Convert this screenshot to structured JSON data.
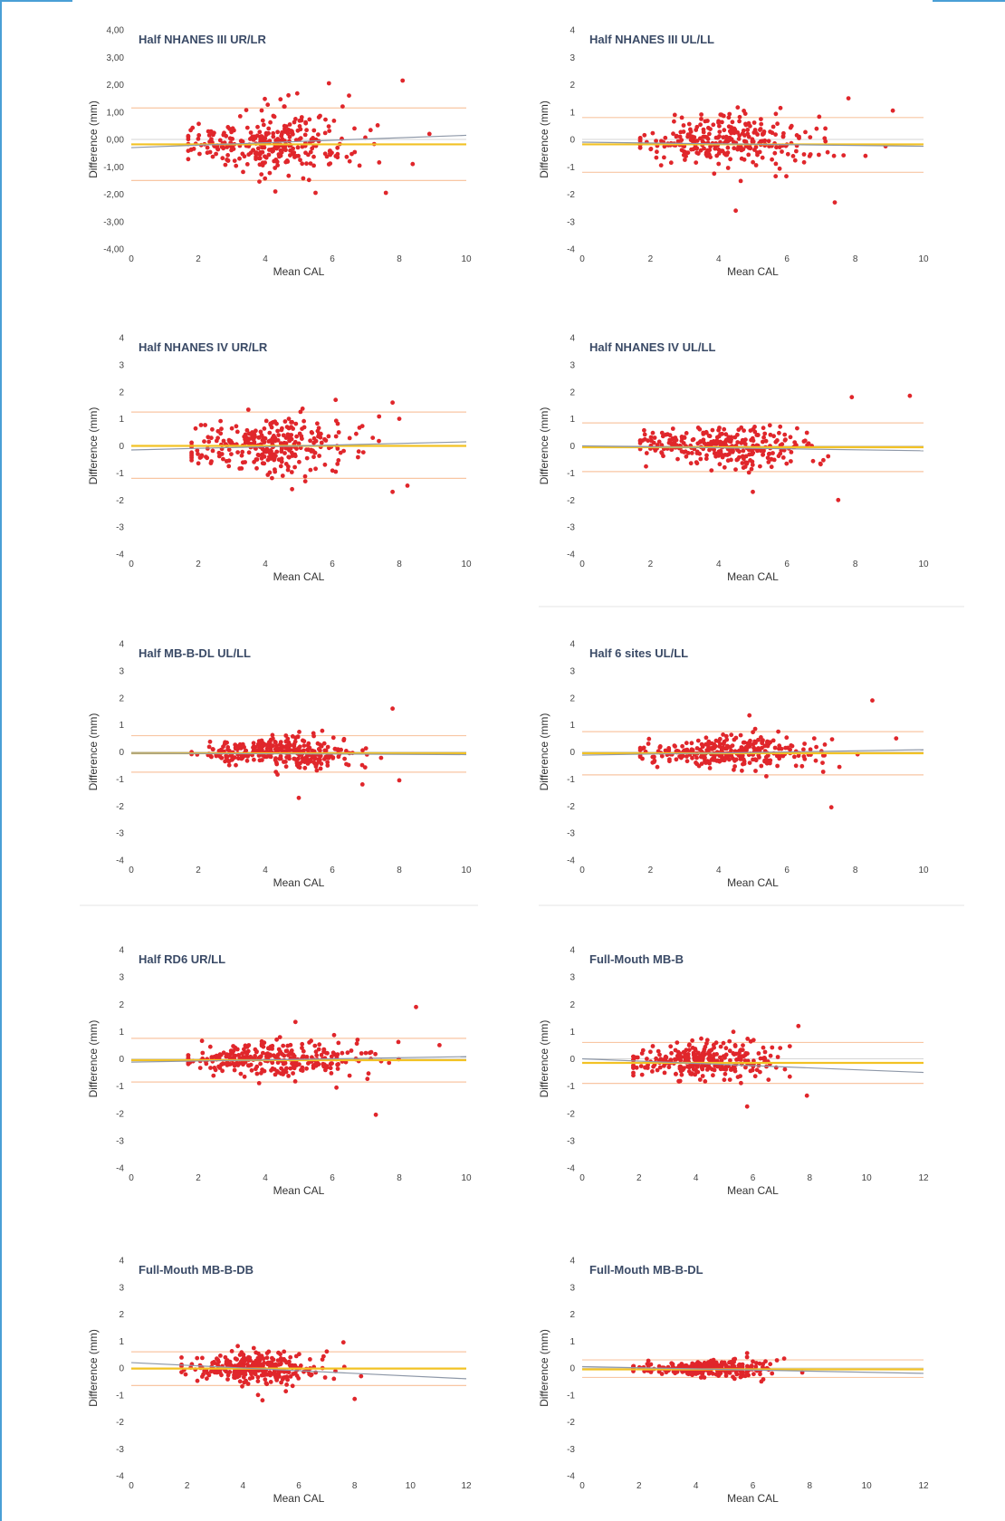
{
  "colors": {
    "frame": "#4a9fd6",
    "points": "#e0262b",
    "mean_line": "#f2c224",
    "limits_line": "#f8c6a3",
    "regression_line": "#8e98a8",
    "zero_line": "#d6d6d6",
    "separator": "#e6e6e6"
  },
  "chart_data": [
    {
      "type": "scatter",
      "title": "Half NHANES III UR/LR",
      "xlabel": "Mean CAL",
      "ylabel": "Difference (mm)",
      "xlim": [
        0,
        10
      ],
      "ylim": [
        -4,
        4
      ],
      "x_ticks": [
        "0",
        "2",
        "4",
        "6",
        "8",
        "10"
      ],
      "y_ticks": [
        "-4,00",
        "-3,00",
        "-2,00",
        "-1,00",
        "0,00",
        "1,00",
        "2,00",
        "3,00",
        "4,00"
      ],
      "mean_diff": -0.18,
      "upper_loa": 1.15,
      "lower_loa": -1.5,
      "regression": [
        [
          0,
          -0.3
        ],
        [
          10,
          0.15
        ]
      ],
      "point_cloud": {
        "n": 300,
        "x_center": 3.8,
        "x_spread": 1.4,
        "x_min": 1.7,
        "x_max": 9,
        "y_sd": 0.55,
        "seed": 11
      },
      "outliers": [
        [
          5.9,
          2.05
        ],
        [
          8.1,
          2.15
        ],
        [
          6.5,
          1.6
        ],
        [
          4.3,
          -1.9
        ],
        [
          5.5,
          -1.95
        ],
        [
          7.6,
          -1.95
        ],
        [
          8.9,
          0.2
        ],
        [
          8.4,
          -0.9
        ]
      ],
      "grid": false
    },
    {
      "type": "scatter",
      "title": "Half NHANES III UL/LL",
      "xlabel": "Mean CAL",
      "ylabel": "Difference (mm)",
      "xlim": [
        0,
        10
      ],
      "ylim": [
        -4,
        4
      ],
      "x_ticks": [
        "0",
        "2",
        "4",
        "6",
        "8",
        "10"
      ],
      "y_ticks": [
        "-4",
        "-3",
        "-2",
        "-1",
        "0",
        "1",
        "2",
        "3",
        "4"
      ],
      "mean_diff": -0.18,
      "upper_loa": 0.8,
      "lower_loa": -1.2,
      "regression": [
        [
          0,
          -0.1
        ],
        [
          10,
          -0.25
        ]
      ],
      "point_cloud": {
        "n": 300,
        "x_center": 3.8,
        "x_spread": 1.4,
        "x_min": 1.7,
        "x_max": 9,
        "y_sd": 0.45,
        "seed": 23
      },
      "outliers": [
        [
          4.5,
          -2.6
        ],
        [
          7.4,
          -2.3
        ],
        [
          7.8,
          1.5
        ],
        [
          9.1,
          1.05
        ],
        [
          8.3,
          -0.6
        ]
      ],
      "grid": false
    },
    {
      "type": "scatter",
      "title": "Half NHANES IV UR/LR",
      "xlabel": "Mean CAL",
      "ylabel": "Difference (mm)",
      "xlim": [
        0,
        10
      ],
      "ylim": [
        -4,
        4
      ],
      "x_ticks": [
        "0",
        "2",
        "4",
        "6",
        "8",
        "10"
      ],
      "y_ticks": [
        "-4",
        "-3",
        "-2",
        "-1",
        "0",
        "1",
        "2",
        "3",
        "4"
      ],
      "mean_diff": 0.0,
      "upper_loa": 1.25,
      "lower_loa": -1.2,
      "regression": [
        [
          0,
          -0.15
        ],
        [
          10,
          0.15
        ]
      ],
      "point_cloud": {
        "n": 300,
        "x_center": 3.9,
        "x_spread": 1.4,
        "x_min": 1.8,
        "x_max": 9,
        "y_sd": 0.5,
        "seed": 37
      },
      "outliers": [
        [
          7.8,
          -1.7
        ],
        [
          7.8,
          1.6
        ],
        [
          6.1,
          1.7
        ],
        [
          8.0,
          1.0
        ],
        [
          4.8,
          -1.6
        ]
      ],
      "grid": false
    },
    {
      "type": "scatter",
      "title": "Half NHANES IV UL/LL",
      "xlabel": "Mean CAL",
      "ylabel": "Difference (mm)",
      "xlim": [
        0,
        10
      ],
      "ylim": [
        -4,
        4
      ],
      "x_ticks": [
        "0",
        "2",
        "4",
        "6",
        "8",
        "10"
      ],
      "y_ticks": [
        "-4",
        "-3",
        "-2",
        "-1",
        "0",
        "1",
        "2",
        "3",
        "4"
      ],
      "mean_diff": -0.05,
      "upper_loa": 0.85,
      "lower_loa": -0.95,
      "regression": [
        [
          0,
          0.0
        ],
        [
          10,
          -0.18
        ]
      ],
      "point_cloud": {
        "n": 300,
        "x_center": 3.8,
        "x_spread": 1.4,
        "x_min": 1.7,
        "x_max": 9,
        "y_sd": 0.4,
        "seed": 41
      },
      "outliers": [
        [
          9.6,
          1.85
        ],
        [
          7.9,
          1.8
        ],
        [
          7.5,
          -2.0
        ],
        [
          5.0,
          -1.7
        ]
      ],
      "grid": false
    },
    {
      "type": "scatter",
      "title": "Half MB-B-DL UL/LL",
      "xlabel": "Mean CAL",
      "ylabel": "Difference (mm)",
      "xlim": [
        0,
        10
      ],
      "ylim": [
        -4,
        4
      ],
      "x_ticks": [
        "0",
        "2",
        "4",
        "6",
        "8",
        "10"
      ],
      "y_ticks": [
        "-4",
        "-3",
        "-2",
        "-1",
        "0",
        "1",
        "2",
        "3",
        "4"
      ],
      "mean_diff": -0.05,
      "upper_loa": 0.6,
      "lower_loa": -0.75,
      "regression": [
        [
          0,
          -0.05
        ],
        [
          10,
          -0.1
        ]
      ],
      "point_cloud": {
        "n": 300,
        "x_center": 3.9,
        "x_spread": 1.4,
        "x_min": 1.8,
        "x_max": 9,
        "y_sd": 0.3,
        "seed": 53
      },
      "outliers": [
        [
          7.8,
          1.6
        ],
        [
          5.0,
          -1.7
        ],
        [
          6.9,
          -1.2
        ],
        [
          8.0,
          -1.05
        ]
      ],
      "grid": false
    },
    {
      "type": "scatter",
      "title": "Half 6 sites UL/LL",
      "xlabel": "Mean CAL",
      "ylabel": "Difference (mm)",
      "xlim": [
        0,
        10
      ],
      "ylim": [
        -4,
        4
      ],
      "x_ticks": [
        "0",
        "2",
        "4",
        "6",
        "8",
        "10"
      ],
      "y_ticks": [
        "-4",
        "-3",
        "-2",
        "-1",
        "0",
        "1",
        "2",
        "3",
        "4"
      ],
      "mean_diff": -0.05,
      "upper_loa": 0.75,
      "lower_loa": -0.85,
      "regression": [
        [
          0,
          -0.12
        ],
        [
          10,
          0.08
        ]
      ],
      "point_cloud": {
        "n": 300,
        "x_center": 3.9,
        "x_spread": 1.4,
        "x_min": 1.7,
        "x_max": 9.2,
        "y_sd": 0.3,
        "seed": 61
      },
      "outliers": [
        [
          8.5,
          1.9
        ],
        [
          7.3,
          -2.05
        ],
        [
          4.9,
          1.35
        ],
        [
          9.2,
          0.5
        ]
      ],
      "grid": false
    },
    {
      "type": "scatter",
      "title": "Half RD6 UR/LL",
      "xlabel": "Mean CAL",
      "ylabel": "Difference (mm)",
      "xlim": [
        0,
        10
      ],
      "ylim": [
        -4,
        4
      ],
      "x_ticks": [
        "0",
        "2",
        "4",
        "6",
        "8",
        "10"
      ],
      "y_ticks": [
        "-4",
        "-3",
        "-2",
        "-1",
        "0",
        "1",
        "2",
        "3",
        "4"
      ],
      "mean_diff": -0.05,
      "upper_loa": 0.75,
      "lower_loa": -0.85,
      "regression": [
        [
          0,
          -0.12
        ],
        [
          10,
          0.08
        ]
      ],
      "point_cloud": {
        "n": 300,
        "x_center": 3.9,
        "x_spread": 1.4,
        "x_min": 1.7,
        "x_max": 9.2,
        "y_sd": 0.3,
        "seed": 67
      },
      "outliers": [
        [
          8.5,
          1.9
        ],
        [
          7.3,
          -2.05
        ],
        [
          4.9,
          1.35
        ],
        [
          9.2,
          0.5
        ]
      ],
      "grid": false
    },
    {
      "type": "scatter",
      "title": "Full-Mouth MB-B",
      "xlabel": "Mean CAL",
      "ylabel": "Difference (mm)",
      "xlim": [
        0,
        12
      ],
      "ylim": [
        -4,
        4
      ],
      "x_ticks": [
        "0",
        "2",
        "4",
        "6",
        "8",
        "10",
        "12"
      ],
      "y_ticks": [
        "-4",
        "-3",
        "-2",
        "-1",
        "0",
        "1",
        "2",
        "3",
        "4"
      ],
      "mean_diff": -0.15,
      "upper_loa": 0.6,
      "lower_loa": -0.9,
      "regression": [
        [
          0,
          0.0
        ],
        [
          12,
          -0.5
        ]
      ],
      "point_cloud": {
        "n": 300,
        "x_center": 3.9,
        "x_spread": 1.3,
        "x_min": 1.8,
        "x_max": 8.8,
        "y_sd": 0.35,
        "seed": 71
      },
      "outliers": [
        [
          7.6,
          1.2
        ],
        [
          5.8,
          -1.75
        ],
        [
          7.9,
          -1.35
        ]
      ],
      "grid": false
    },
    {
      "type": "scatter",
      "title": "Full-Mouth MB-B-DB",
      "xlabel": "Mean CAL",
      "ylabel": "Difference (mm)",
      "xlim": [
        0,
        12
      ],
      "ylim": [
        -4,
        4
      ],
      "x_ticks": [
        "0",
        "2",
        "4",
        "6",
        "8",
        "10",
        "12"
      ],
      "y_ticks": [
        "-4",
        "-3",
        "-2",
        "-1",
        "0",
        "1",
        "2",
        "3",
        "4"
      ],
      "mean_diff": -0.02,
      "upper_loa": 0.6,
      "lower_loa": -0.65,
      "regression": [
        [
          0,
          0.2
        ],
        [
          12,
          -0.4
        ]
      ],
      "point_cloud": {
        "n": 300,
        "x_center": 3.9,
        "x_spread": 1.3,
        "x_min": 1.8,
        "x_max": 8.8,
        "y_sd": 0.28,
        "seed": 83
      },
      "outliers": [
        [
          7.6,
          0.95
        ],
        [
          8.0,
          -1.15
        ],
        [
          4.7,
          -1.2
        ]
      ],
      "grid": false
    },
    {
      "type": "scatter",
      "title": "Full-Mouth MB-B-DL",
      "xlabel": "Mean CAL",
      "ylabel": "Difference (mm)",
      "xlim": [
        0,
        12
      ],
      "ylim": [
        -4,
        4
      ],
      "x_ticks": [
        "0",
        "2",
        "4",
        "6",
        "8",
        "10",
        "12"
      ],
      "y_ticks": [
        "-4",
        "-3",
        "-2",
        "-1",
        "0",
        "1",
        "2",
        "3",
        "4"
      ],
      "mean_diff": -0.05,
      "upper_loa": 0.3,
      "lower_loa": -0.35,
      "regression": [
        [
          0,
          0.05
        ],
        [
          12,
          -0.2
        ]
      ],
      "point_cloud": {
        "n": 300,
        "x_center": 3.9,
        "x_spread": 1.3,
        "x_min": 1.8,
        "x_max": 9,
        "y_sd": 0.14,
        "seed": 97
      },
      "outliers": [
        [
          5.8,
          0.55
        ],
        [
          7.1,
          0.35
        ],
        [
          6.3,
          -0.5
        ]
      ],
      "grid": false
    }
  ]
}
